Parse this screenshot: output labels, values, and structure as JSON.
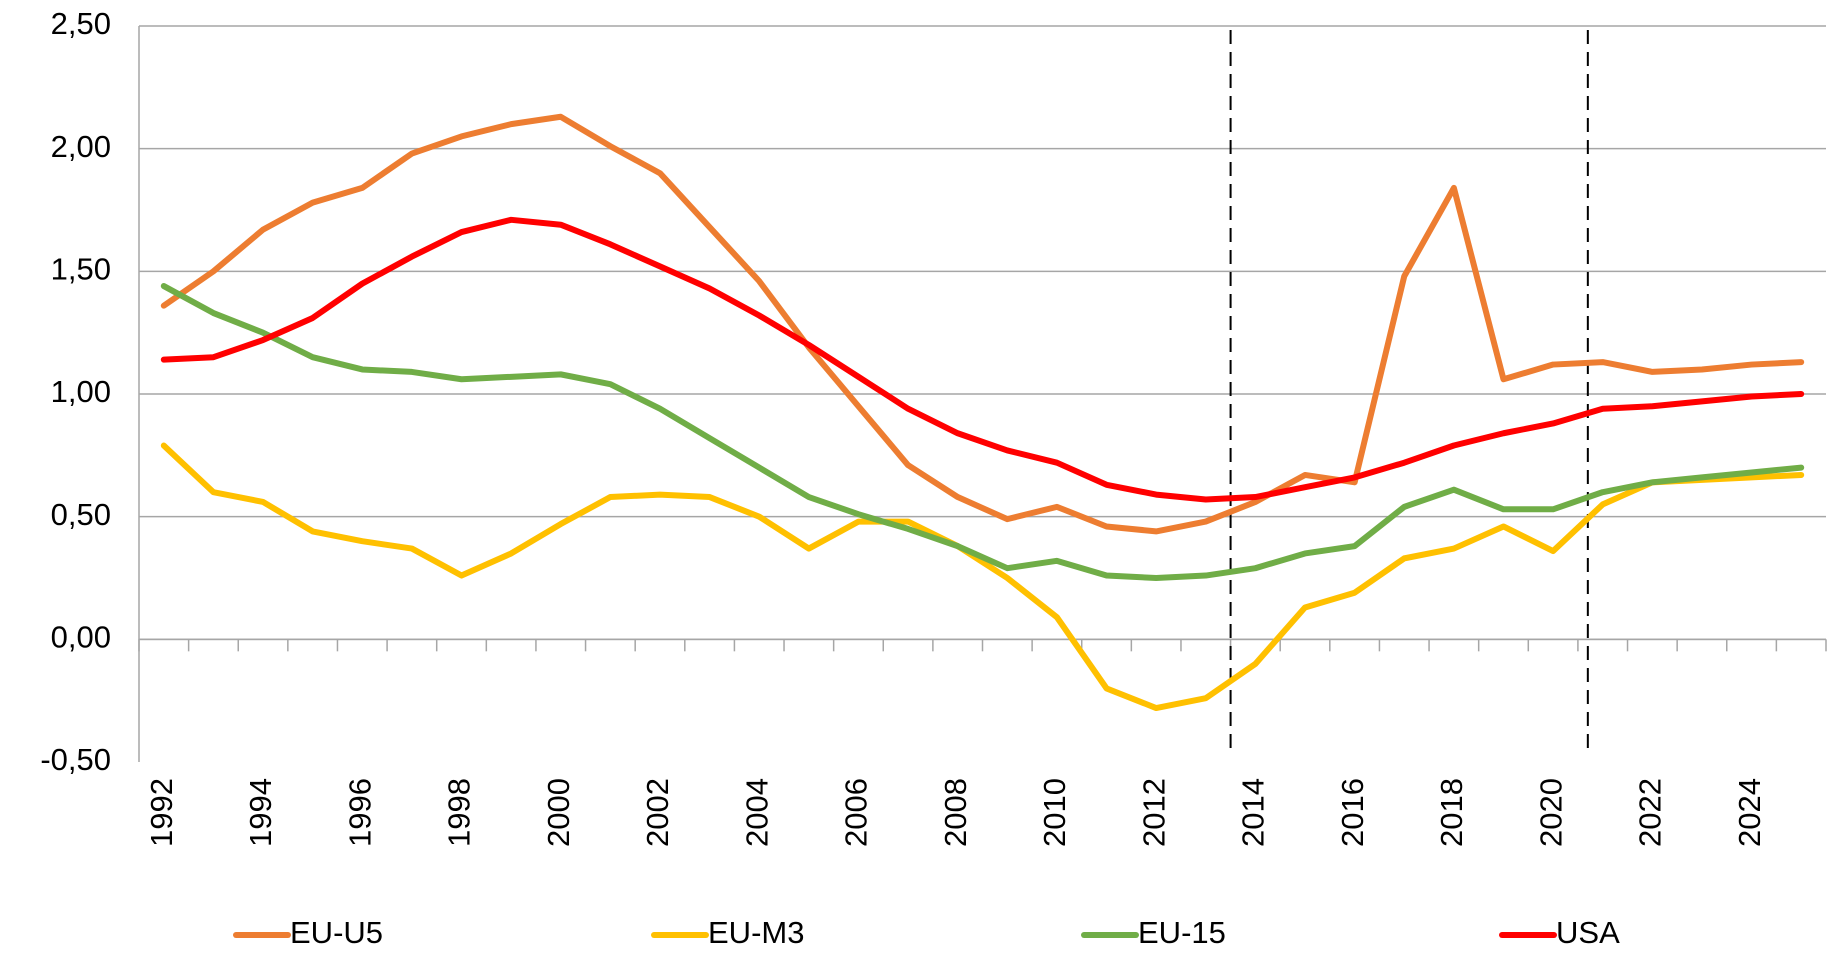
{
  "chart_data": {
    "type": "line",
    "categories": [
      "1992",
      null,
      "1994",
      null,
      "1996",
      null,
      "1998",
      null,
      "2000",
      null,
      "2002",
      null,
      "2004",
      null,
      "2006",
      null,
      "2008",
      null,
      "2010",
      null,
      "2012",
      null,
      "2014",
      null,
      "2016",
      null,
      "2018",
      null,
      "2020",
      null,
      "2022",
      null,
      "2024",
      null
    ],
    "series": [
      {
        "name": "EU-U5",
        "color": "#ed7d31",
        "values": [
          1.36,
          1.5,
          1.67,
          1.78,
          1.84,
          1.98,
          2.05,
          2.1,
          2.13,
          2.01,
          1.9,
          1.68,
          1.46,
          1.19,
          0.95,
          0.71,
          0.58,
          0.49,
          0.54,
          0.46,
          0.44,
          0.48,
          0.56,
          0.67,
          0.64,
          1.48,
          1.84,
          1.06,
          1.12,
          1.13,
          1.09,
          1.1,
          1.12,
          1.13
        ]
      },
      {
        "name": "EU-M3",
        "color": "#ffc000",
        "values": [
          0.79,
          0.6,
          0.56,
          0.44,
          0.4,
          0.37,
          0.26,
          0.35,
          0.47,
          0.58,
          0.59,
          0.58,
          0.5,
          0.37,
          0.48,
          0.48,
          0.38,
          0.25,
          0.09,
          -0.2,
          -0.28,
          -0.24,
          -0.1,
          0.13,
          0.19,
          0.33,
          0.37,
          0.46,
          0.36,
          0.55,
          0.64,
          0.65,
          0.66,
          0.67
        ]
      },
      {
        "name": "EU-15",
        "color": "#70ad47",
        "values": [
          1.44,
          1.33,
          1.25,
          1.15,
          1.1,
          1.09,
          1.06,
          1.07,
          1.08,
          1.04,
          0.94,
          0.82,
          0.7,
          0.58,
          0.51,
          0.45,
          0.38,
          0.29,
          0.32,
          0.26,
          0.25,
          0.26,
          0.29,
          0.35,
          0.38,
          0.54,
          0.61,
          0.53,
          0.53,
          0.6,
          0.64,
          0.66,
          0.68,
          0.7
        ]
      },
      {
        "name": "USA",
        "color": "#ff0000",
        "values": [
          1.14,
          1.15,
          1.22,
          1.31,
          1.45,
          1.56,
          1.66,
          1.71,
          1.69,
          1.61,
          1.52,
          1.43,
          1.32,
          1.2,
          1.07,
          0.94,
          0.84,
          0.77,
          0.72,
          0.63,
          0.59,
          0.57,
          0.58,
          0.62,
          0.66,
          0.72,
          0.79,
          0.84,
          0.88,
          0.94,
          0.95,
          0.97,
          0.99,
          1.0
        ]
      }
    ],
    "ylim": [
      -0.5,
      2.5
    ],
    "yticks": [
      {
        "value": -0.5,
        "label": "-0,50"
      },
      {
        "value": 0,
        "label": "0,00"
      },
      {
        "value": 0.5,
        "label": "0,50"
      },
      {
        "value": 1,
        "label": "1,00"
      },
      {
        "value": 1.5,
        "label": "1,50"
      },
      {
        "value": 2,
        "label": "2,00"
      },
      {
        "value": 2.5,
        "label": "2,50"
      }
    ],
    "grid": true,
    "legend": "bottom",
    "vlines": [
      2013.5,
      2020.7
    ]
  }
}
